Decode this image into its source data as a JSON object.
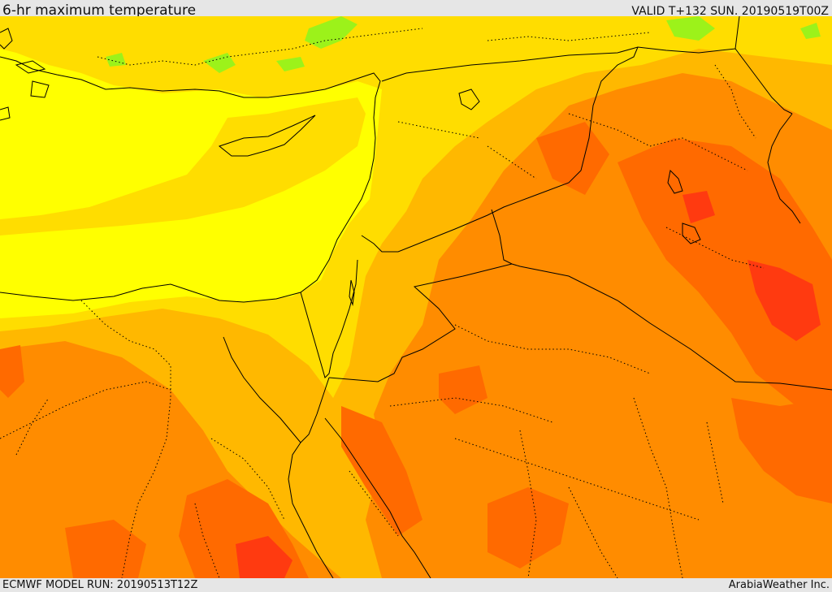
{
  "header": {
    "title": "6-hr maximum temperature",
    "valid_time": "VALID T+132 SUN. 20190519T00Z"
  },
  "footer": {
    "model_run": "ECMWF MODEL RUN: 20190513T12Z",
    "credit": "ArabiaWeather Inc."
  },
  "map": {
    "field": "6-hr maximum temperature",
    "region": "Eastern Mediterranean, Levant, Egypt, northern Arabia, Iraq",
    "colors": {
      "sea_cool": "#ffff00",
      "cool_land": "#ffdd00",
      "warm": "#ffb800",
      "hot": "#ff8c00",
      "very_hot": "#ff6a00",
      "extreme": "#ff3a10",
      "cold_spots": "#9cf21a",
      "boundaries": "#000000"
    }
  }
}
